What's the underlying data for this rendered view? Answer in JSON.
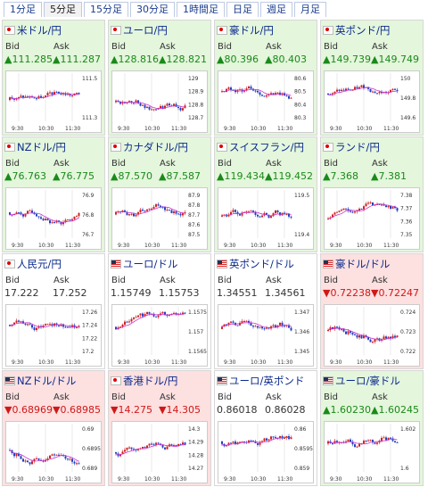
{
  "tabs": [
    "1分足",
    "5分足",
    "15分足",
    "30分足",
    "1時間足",
    "日足",
    "週足",
    "月足"
  ],
  "active_tab": 1,
  "bid_label": "Bid",
  "ask_label": "Ask",
  "x_ticks": [
    "9:30",
    "10:30",
    "11:30"
  ],
  "colors": {
    "green_bg": "#e4f6dc",
    "red_bg": "#fde0e0",
    "up": "#1a8a1a",
    "down": "#d01818",
    "candle_up": "#d02020",
    "candle_down": "#2040c0",
    "ma": "#cc33cc"
  },
  "tiles": [
    {
      "name": "米ドル/円",
      "flag": "jp",
      "bid": "▲111.285",
      "ask": "▲111.287",
      "dir": "up",
      "bg": "green",
      "yticks": [
        "111.5",
        "111.3"
      ]
    },
    {
      "name": "ユーロ/円",
      "flag": "jp",
      "bid": "▲128.816",
      "ask": "▲128.821",
      "dir": "up",
      "bg": "green",
      "yticks": [
        "129",
        "128.9",
        "128.8",
        "128.7"
      ]
    },
    {
      "name": "豪ドル/円",
      "flag": "jp",
      "bid": "▲80.396",
      "ask": "▲80.403",
      "dir": "up",
      "bg": "green",
      "yticks": [
        "80.6",
        "80.5",
        "80.4",
        "80.3"
      ]
    },
    {
      "name": "英ポンド/円",
      "flag": "jp",
      "bid": "▲149.739",
      "ask": "▲149.749",
      "dir": "up",
      "bg": "green",
      "yticks": [
        "150",
        "149.8",
        "149.6"
      ]
    },
    {
      "name": "NZドル/円",
      "flag": "jp",
      "bid": "▲76.763",
      "ask": "▲76.775",
      "dir": "up",
      "bg": "green",
      "yticks": [
        "76.9",
        "76.8",
        "76.7"
      ]
    },
    {
      "name": "カナダドル/円",
      "flag": "jp",
      "bid": "▲87.570",
      "ask": "▲87.587",
      "dir": "up",
      "bg": "green",
      "yticks": [
        "87.9",
        "87.8",
        "87.7",
        "87.6",
        "87.5"
      ]
    },
    {
      "name": "スイスフラン/円",
      "flag": "jp",
      "bid": "▲119.434",
      "ask": "▲119.452",
      "dir": "up",
      "bg": "green",
      "yticks": [
        "119.5",
        "119.4"
      ]
    },
    {
      "name": "ランド/円",
      "flag": "jp",
      "bid": "▲7.368",
      "ask": "▲7.381",
      "dir": "up",
      "bg": "green",
      "yticks": [
        "7.38",
        "7.37",
        "7.36",
        "7.35"
      ]
    },
    {
      "name": "人民元/円",
      "flag": "jp",
      "bid": "17.222",
      "ask": "17.252",
      "dir": "eq",
      "bg": "white",
      "yticks": [
        "17.26",
        "17.24",
        "17.22",
        "17.2"
      ]
    },
    {
      "name": "ユーロ/ドル",
      "flag": "us",
      "bid": "1.15749",
      "ask": "1.15753",
      "dir": "eq",
      "bg": "white",
      "yticks": [
        "1.1575",
        "1.157",
        "1.1565"
      ]
    },
    {
      "name": "英ポンド/ドル",
      "flag": "us",
      "bid": "1.34551",
      "ask": "1.34561",
      "dir": "eq",
      "bg": "white",
      "yticks": [
        "1.347",
        "1.346",
        "1.345"
      ]
    },
    {
      "name": "豪ドル/ドル",
      "flag": "us",
      "bid": "▼0.72238",
      "ask": "▼0.72247",
      "dir": "dn",
      "bg": "red",
      "yticks": [
        "0.724",
        "0.723",
        "0.722"
      ]
    },
    {
      "name": "NZドル/ドル",
      "flag": "us",
      "bid": "▼0.68969",
      "ask": "▼0.68985",
      "dir": "dn",
      "bg": "red",
      "yticks": [
        "0.69",
        "0.6895",
        "0.689"
      ]
    },
    {
      "name": "香港ドル/円",
      "flag": "jp",
      "bid": "▼14.275",
      "ask": "▼14.305",
      "dir": "dn",
      "bg": "red",
      "yticks": [
        "14.3",
        "14.29",
        "14.28",
        "14.27"
      ]
    },
    {
      "name": "ユーロ/英ポンド",
      "flag": "us",
      "bid": "0.86018",
      "ask": "0.86028",
      "dir": "eq",
      "bg": "white",
      "yticks": [
        "0.86",
        "0.8595",
        "0.859"
      ]
    },
    {
      "name": "ユーロ/豪ドル",
      "flag": "us",
      "bid": "▲1.60230",
      "ask": "▲1.60245",
      "dir": "up",
      "bg": "green",
      "yticks": [
        "1.602",
        "1.6"
      ]
    }
  ]
}
